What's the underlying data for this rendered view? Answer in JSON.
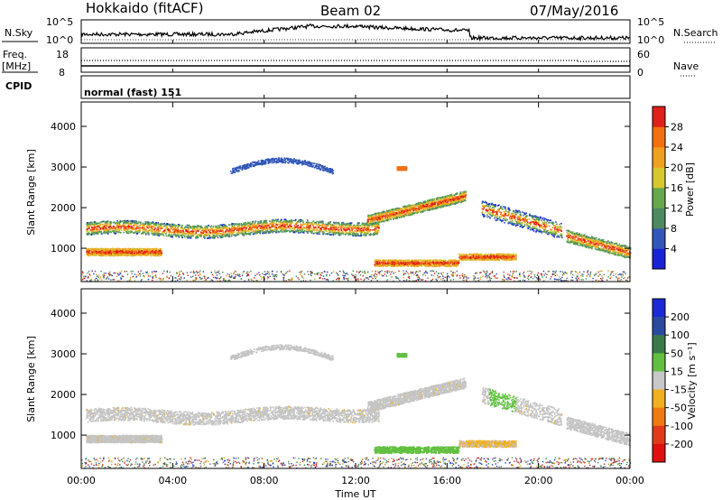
{
  "header": {
    "station": "Hokkaido (fitACF)",
    "beam": "Beam 02",
    "date": "07/May/2016"
  },
  "nsky_panel": {
    "left_label": "N.Sky",
    "right_label": "N.Search",
    "left_ticks": [
      "10^5",
      "10^0"
    ],
    "right_ticks": [
      "10^5",
      "10^0"
    ]
  },
  "freq_panel": {
    "label_line1": "Freq.",
    "label_line2": "[MHz]",
    "left_ticks": [
      "18",
      "8"
    ],
    "right_label": "Nave",
    "right_ticks": [
      "60",
      "0"
    ],
    "cpid_label": "CPID",
    "cpid_value": "normal (fast) 151"
  },
  "chart_data": [
    {
      "type": "heatmap",
      "name": "power",
      "ylabel": "Slant Range [km]",
      "xlabel": "Time UT",
      "x_range_hours": [
        0,
        24
      ],
      "ylim": [
        180,
        4600
      ],
      "yticks": [
        1000,
        2000,
        3000,
        4000
      ],
      "colorbar": {
        "label": "Power [dB]",
        "ticks": [
          4,
          8,
          12,
          16,
          20,
          24,
          28
        ],
        "colors": [
          "#1a22d6",
          "#3257b8",
          "#4d8a5f",
          "#66a84c",
          "#d7c830",
          "#f0a020",
          "#f27010",
          "#e0201a"
        ]
      }
    },
    {
      "type": "heatmap",
      "name": "velocity",
      "ylabel": "Slant Range [km]",
      "xlabel": "Time UT",
      "x_range_hours": [
        0,
        24
      ],
      "ylim": [
        180,
        4600
      ],
      "yticks": [
        1000,
        2000,
        3000,
        4000
      ],
      "colorbar": {
        "label": "Velocity [m s⁻¹]",
        "ticks": [
          "200",
          "100",
          "50",
          "15",
          "-15",
          "-50",
          "-100",
          "-200"
        ],
        "colors": [
          "#1a2ad6",
          "#2a4aa0",
          "#3a7a4a",
          "#62c040",
          "#c8c8c8",
          "#f0b020",
          "#f07a10",
          "#e03a1a",
          "#e01010"
        ]
      }
    }
  ],
  "x_axis": {
    "ticks": [
      "00:00",
      "04:00",
      "08:00",
      "12:00",
      "16:00",
      "20:00",
      "00:00"
    ],
    "label": "Time UT"
  }
}
